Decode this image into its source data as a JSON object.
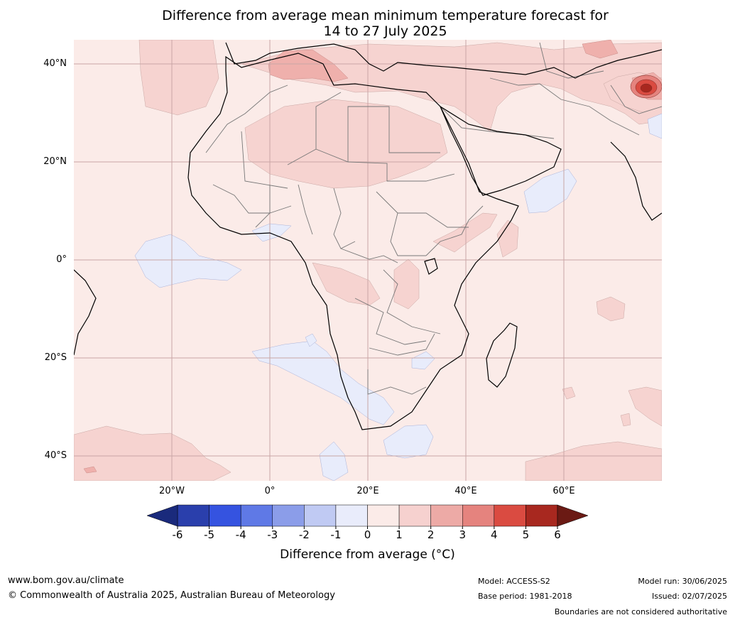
{
  "title_line1": "Difference from average mean minimum temperature forecast for",
  "title_line2": "14 to 27 July 2025",
  "map": {
    "lat_labels": [
      "40°N",
      "20°N",
      "0°",
      "20°S",
      "40°S"
    ],
    "lon_labels": [
      "20°W",
      "0°",
      "20°E",
      "40°E",
      "60°E"
    ],
    "background_color": "#fbebe8"
  },
  "colorbar": {
    "ticks": [
      "-6",
      "-5",
      "-4",
      "-3",
      "-2",
      "-1",
      "0",
      "1",
      "2",
      "3",
      "4",
      "5",
      "6"
    ],
    "colors": [
      "#2a3fac",
      "#3553e0",
      "#5f79e6",
      "#8b9de9",
      "#c0caf3",
      "#e9ecfb",
      "#fbebe8",
      "#f6d1cf",
      "#edaaa6",
      "#e5837e",
      "#da4b41",
      "#a8281f"
    ],
    "under_color": "#1a2a7c",
    "over_color": "#6b1a14",
    "label": "Difference from average (°C)"
  },
  "footer": {
    "website": "www.bom.gov.au/climate",
    "copyright": "© Commonwealth of Australia 2025, Australian Bureau of Meteorology",
    "model": "Model: ACCESS-S2",
    "base_period": "Base period: 1981-2018",
    "model_run": "Model run: 30/06/2025",
    "issued": "Issued: 02/07/2025",
    "disclaimer": "Boundaries are not considered authoritative"
  }
}
